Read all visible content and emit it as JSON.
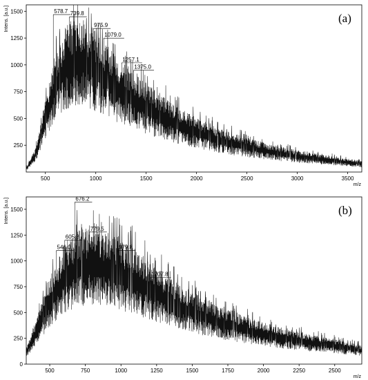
{
  "chart_data": [
    {
      "type": "line",
      "panel_label": "(a)",
      "ylabel": "Intens. [a.u.]",
      "xlabel": "m/z",
      "xlim": [
        310,
        3640
      ],
      "ylim": [
        0,
        1560
      ],
      "x_ticks": [
        500,
        1000,
        1500,
        2000,
        2500,
        3000,
        3500
      ],
      "y_ticks": [
        250,
        500,
        750,
        1000,
        1250,
        1500
      ],
      "grid": false,
      "envelope": {
        "x": [
          320,
          400,
          500,
          600,
          700,
          800,
          900,
          1000,
          1100,
          1200,
          1300,
          1400,
          1600,
          1800,
          2000,
          2200,
          2500,
          2800,
          3000,
          3300,
          3640
        ],
        "y": [
          40,
          160,
          480,
          800,
          970,
          1030,
          1010,
          940,
          860,
          780,
          720,
          650,
          540,
          440,
          370,
          300,
          230,
          175,
          145,
          110,
          75
        ]
      },
      "peaks": [
        {
          "label": "578.7",
          "x": 578.7,
          "y": 1450
        },
        {
          "label": "739.8",
          "x": 739.8,
          "y": 1430
        },
        {
          "label": "975.9",
          "x": 975.9,
          "y": 1320
        },
        {
          "label": "1079.0",
          "x": 1079.0,
          "y": 1230
        },
        {
          "label": "1257.1",
          "x": 1257.1,
          "y": 1000
        },
        {
          "label": "1375.0",
          "x": 1375.0,
          "y": 930
        }
      ]
    },
    {
      "type": "line",
      "panel_label": "(b)",
      "ylabel": "Intens. [a.u.]",
      "xlabel": "m/z",
      "xlim": [
        335,
        2690
      ],
      "ylim": [
        0,
        1620
      ],
      "x_ticks": [
        500,
        750,
        1000,
        1250,
        1500,
        1750,
        2000,
        2250,
        2500
      ],
      "y_ticks": [
        0,
        250,
        500,
        750,
        1000,
        1250,
        1500
      ],
      "grid": false,
      "envelope": {
        "x": [
          340,
          400,
          500,
          600,
          700,
          800,
          900,
          1000,
          1100,
          1200,
          1300,
          1400,
          1500,
          1700,
          1900,
          2100,
          2300,
          2500,
          2690
        ],
        "y": [
          120,
          300,
          600,
          820,
          930,
          950,
          920,
          860,
          800,
          720,
          640,
          560,
          500,
          400,
          320,
          260,
          210,
          175,
          130
        ]
      },
      "peaks": [
        {
          "label": "546.0",
          "x": 546.0,
          "y": 1080
        },
        {
          "label": "605.3",
          "x": 605.3,
          "y": 1180
        },
        {
          "label": "676.2",
          "x": 676.2,
          "y": 1550
        },
        {
          "label": "779.5",
          "x": 779.5,
          "y": 1260
        },
        {
          "label": "979.8",
          "x": 979.8,
          "y": 1080
        },
        {
          "label": "1207.8",
          "x": 1207.8,
          "y": 820
        }
      ]
    }
  ]
}
